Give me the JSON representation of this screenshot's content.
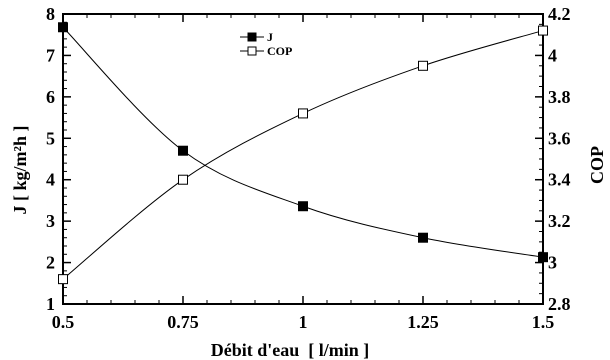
{
  "chart_data": {
    "type": "line",
    "x": [
      0.5,
      0.75,
      1,
      1.25,
      1.5
    ],
    "xlabel": "Débit d'eau  [ l/min ]",
    "ylabel": "J [ kg/m²h ]",
    "y2label": "COP",
    "xlim": [
      0.5,
      1.5
    ],
    "ylim": [
      1,
      8
    ],
    "y2lim": [
      2.8,
      4.2
    ],
    "xticks": [
      "0.5",
      "0.75",
      "1",
      "1.25",
      "1.5"
    ],
    "yticks": [
      "1",
      "2",
      "3",
      "4",
      "5",
      "6",
      "7",
      "8"
    ],
    "y2ticks": [
      "2.8",
      "3",
      "3.2",
      "3.4",
      "3.6",
      "3.8",
      "4",
      "4.2"
    ],
    "grid": false,
    "legend_position": "top-center",
    "series": [
      {
        "name": "J",
        "axis": "left",
        "marker": "filled-square",
        "values": [
          7.68,
          4.7,
          3.36,
          2.6,
          2.13
        ]
      },
      {
        "name": "COP",
        "axis": "right",
        "marker": "open-square",
        "values": [
          2.92,
          3.4,
          3.72,
          3.95,
          4.12
        ]
      }
    ],
    "colors": {
      "line": "#000000",
      "background": "#ffffff"
    }
  }
}
